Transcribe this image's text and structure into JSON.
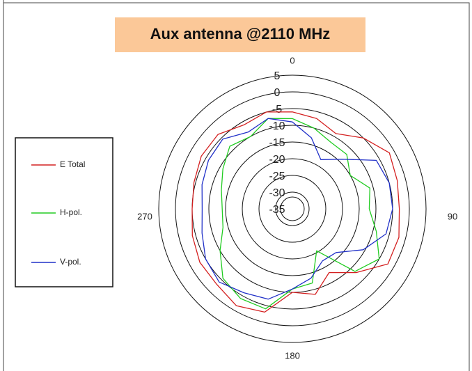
{
  "chart_data": {
    "type": "polar",
    "title": "Aux antenna @2110 MHz",
    "theta": [
      0,
      15,
      30,
      45,
      60,
      75,
      90,
      105,
      120,
      135,
      150,
      165,
      180,
      195,
      210,
      225,
      240,
      255,
      270,
      285,
      300,
      315,
      330,
      345
    ],
    "angle_ticks": [
      0,
      90,
      180,
      270
    ],
    "rlim": [
      -35,
      5
    ],
    "rticks": [
      5,
      0,
      -5,
      -10,
      -15,
      -20,
      -25,
      -30,
      -35
    ],
    "series": [
      {
        "name": "E Total",
        "color": "#d42020",
        "values": [
          -6,
          -7,
          -9,
          -5,
          -1.5,
          -2.5,
          -3,
          -2,
          -2,
          -8,
          -13,
          -8.5,
          -10,
          -3,
          -1.5,
          -3,
          -3,
          -4,
          -5,
          -4.5,
          -3.5,
          -3.5,
          -6,
          -5
        ]
      },
      {
        "name": "H-pol.",
        "color": "#22cc22",
        "values": [
          -8,
          -10,
          -12,
          -12,
          -15,
          -11,
          -12,
          -9,
          -5,
          -8.5,
          -20.5,
          -12,
          -11,
          -4,
          -4,
          -5.6,
          -10,
          -13.5,
          -14,
          -13,
          -11,
          -8.5,
          -10,
          -7
        ]
      },
      {
        "name": "V-pol.",
        "color": "#2030c8",
        "values": [
          -9,
          -13,
          -18,
          -14,
          -6,
          -5,
          -5,
          -6,
          -10.5,
          -16.5,
          -17,
          -13.5,
          -11,
          -7,
          -6,
          -4,
          -5,
          -7,
          -8,
          -7,
          -6,
          -5.5,
          -8.5,
          -7
        ]
      }
    ],
    "legend": "left"
  }
}
